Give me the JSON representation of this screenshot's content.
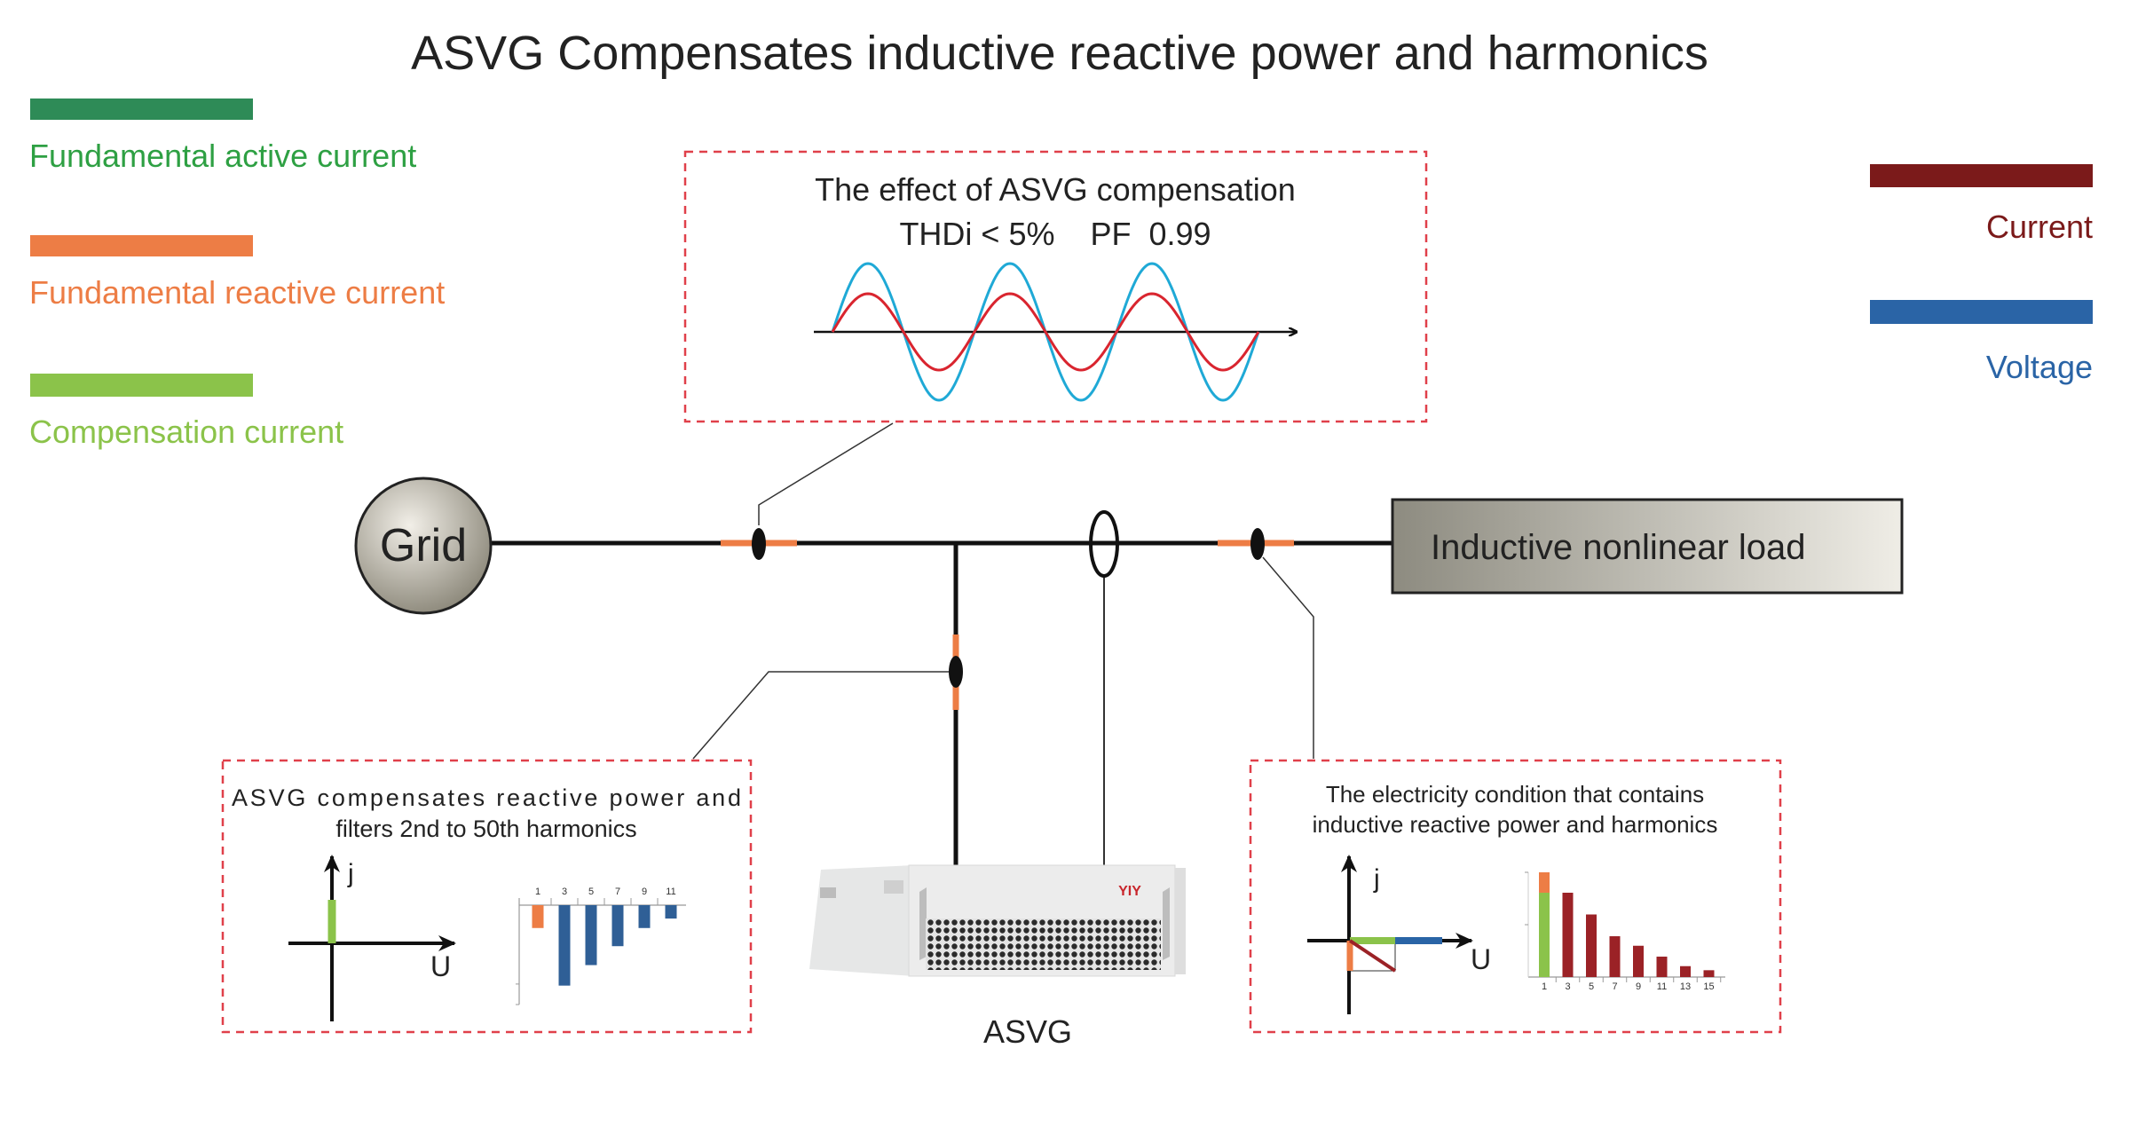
{
  "title": "ASVG Compensates inductive reactive power and harmonics",
  "legend_left": [
    {
      "label": "Fundamental active current",
      "color": "#2e8b57"
    },
    {
      "label": "Fundamental reactive current",
      "color": "#ed7d45"
    },
    {
      "label": "Compensation current",
      "color": "#8bc34a"
    }
  ],
  "legend_right": [
    {
      "label": "Current",
      "color": "#7b1a1a"
    },
    {
      "label": "Voltage",
      "color": "#2a64a6"
    }
  ],
  "effect_box": {
    "line1": "The effect of ASVG compensation",
    "line2": "THDi < 5%    PF  0.99",
    "wave_colors": {
      "voltage": "#1fa9d6",
      "current": "#d9252f"
    }
  },
  "grid_label": "Grid",
  "load_label": "Inductive nonlinear load",
  "device": {
    "label": "ASVG",
    "brand": "YIY"
  },
  "left_box": {
    "line1": "ASVG compensates reactive power and",
    "line2": "filters 2nd to 50th harmonics",
    "axis_j": "j",
    "axis_u": "U"
  },
  "right_box": {
    "line1": "The electricity condition that contains",
    "line2": "inductive reactive power and harmonics",
    "axis_j": "j",
    "axis_u": "U"
  },
  "chart_data": [
    {
      "type": "bar",
      "categories": [
        "1",
        "3",
        "5",
        "7",
        "9",
        "11"
      ],
      "values": [
        -0.29,
        -1.02,
        -0.76,
        -0.52,
        -0.29,
        -0.17
      ],
      "colors": [
        "#ed7d45",
        "#2f5f96",
        "#2f5f96",
        "#2f5f96",
        "#2f5f96",
        "#2f5f96"
      ],
      "ylim": [
        -1.26,
        0
      ]
    },
    {
      "type": "bar",
      "categories": [
        "1",
        "3",
        "5",
        "7",
        "9",
        "11",
        "13",
        "15"
      ],
      "series": [
        {
          "values": [
            62,
            62,
            46,
            30,
            23,
            15,
            8,
            5
          ],
          "colors": [
            "#8bc34a",
            "#9b2226",
            "#9b2226",
            "#9b2226",
            "#9b2226",
            "#9b2226",
            "#9b2226",
            "#9b2226"
          ]
        },
        {
          "values": [
            15,
            0,
            0,
            0,
            0,
            0,
            0,
            0
          ],
          "color": "#ed7d45"
        }
      ],
      "ylim": [
        0,
        77
      ]
    }
  ]
}
